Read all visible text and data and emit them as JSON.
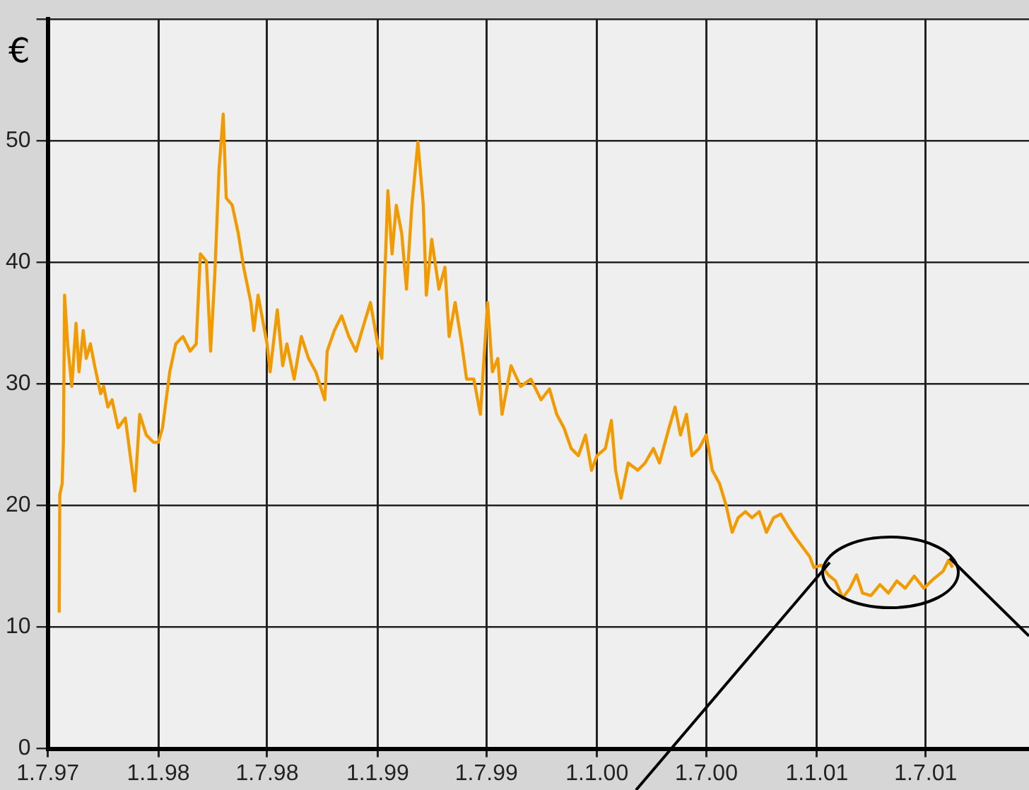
{
  "chart_data": {
    "type": "line",
    "ylabel": "€",
    "color": "#f29b00",
    "grid": true,
    "legend": false,
    "marker": "none",
    "line_style": "solid",
    "xlim": [
      "1997-07-01",
      "2001-12-20"
    ],
    "ylim": [
      0,
      60
    ],
    "xticks": [
      {
        "value": "1997-07-01",
        "label": "1.7.97"
      },
      {
        "value": "1998-01-01",
        "label": "1.1.98"
      },
      {
        "value": "1998-07-01",
        "label": "1.7.98"
      },
      {
        "value": "1999-01-01",
        "label": "1.1.99"
      },
      {
        "value": "1999-07-01",
        "label": "1.7.99"
      },
      {
        "value": "2000-01-01",
        "label": "1.1.00"
      },
      {
        "value": "2000-07-01",
        "label": "1.7.00"
      },
      {
        "value": "2001-01-01",
        "label": "1.1.01"
      },
      {
        "value": "2001-07-01",
        "label": "1.7.01"
      }
    ],
    "yticks": [
      0,
      10,
      20,
      30,
      40,
      50,
      {
        "value": 60,
        "label": null
      }
    ],
    "x": [
      "1997-07-20",
      "1997-07-21",
      "1997-07-25",
      "1997-07-27",
      "1997-07-29",
      "1997-08-03",
      "1997-08-10",
      "1997-08-17",
      "1997-08-22",
      "1997-08-29",
      "1997-09-03",
      "1997-09-10",
      "1997-09-17",
      "1997-09-27",
      "1997-10-02",
      "1997-10-09",
      "1997-10-16",
      "1997-10-26",
      "1997-11-07",
      "1997-11-23",
      "1997-12-01",
      "1997-12-12",
      "1997-12-24",
      "1998-01-01",
      "1998-01-08",
      "1998-01-20",
      "1998-01-30",
      "1998-02-11",
      "1998-02-23",
      "1998-03-05",
      "1998-03-12",
      "1998-03-22",
      "1998-03-29",
      "1998-04-05",
      "1998-04-12",
      "1998-04-19",
      "1998-04-24",
      "1998-05-04",
      "1998-05-14",
      "1998-05-23",
      "1998-06-04",
      "1998-06-09",
      "1998-06-16",
      "1998-07-01",
      "1998-07-06",
      "1998-07-18",
      "1998-07-27",
      "1998-08-03",
      "1998-08-15",
      "1998-08-27",
      "1998-09-08",
      "1998-09-20",
      "1998-10-05",
      "1998-10-09",
      "1998-10-21",
      "1998-11-02",
      "1998-11-14",
      "1998-11-26",
      "1998-12-06",
      "1998-12-20",
      "1999-01-01",
      "1999-01-08",
      "1999-01-18",
      "1999-01-25",
      "1999-02-01",
      "1999-02-10",
      "1999-02-18",
      "1999-02-27",
      "1999-03-09",
      "1999-03-18",
      "1999-03-23",
      "1999-04-01",
      "1999-04-13",
      "1999-04-23",
      "1999-04-30",
      "1999-05-10",
      "1999-05-21",
      "1999-05-29",
      "1999-06-10",
      "1999-06-21",
      "1999-07-03",
      "1999-07-11",
      "1999-07-20",
      "1999-07-27",
      "1999-08-11",
      "1999-08-27",
      "1999-09-13",
      "1999-09-30",
      "1999-10-14",
      "1999-10-26",
      "1999-11-07",
      "1999-11-19",
      "1999-12-01",
      "1999-12-13",
      "1999-12-23",
      "2000-01-01",
      "2000-01-15",
      "2000-01-25",
      "2000-02-01",
      "2000-02-10",
      "2000-02-22",
      "2000-03-09",
      "2000-03-21",
      "2000-04-04",
      "2000-04-14",
      "2000-04-30",
      "2000-05-10",
      "2000-05-19",
      "2000-05-29",
      "2000-06-07",
      "2000-06-19",
      "2000-07-01",
      "2000-07-11",
      "2000-07-23",
      "2000-08-03",
      "2000-08-13",
      "2000-08-23",
      "2000-09-04",
      "2000-09-15",
      "2000-09-27",
      "2000-10-09",
      "2000-10-21",
      "2000-11-02",
      "2000-11-14",
      "2000-11-26",
      "2000-12-08",
      "2000-12-20",
      "2000-12-27",
      "2001-01-08",
      "2001-01-20",
      "2001-02-01",
      "2001-02-13",
      "2001-02-25",
      "2001-03-08",
      "2001-03-18",
      "2001-04-01",
      "2001-04-16",
      "2001-04-30",
      "2001-05-14",
      "2001-05-28",
      "2001-06-12",
      "2001-06-28",
      "2001-07-15",
      "2001-07-30",
      "2001-08-08",
      "2001-08-15"
    ],
    "values": [
      11.2,
      20.9,
      21.8,
      25.2,
      37.3,
      33.3,
      29.8,
      35,
      31,
      34.4,
      32.1,
      33.3,
      31.5,
      29.2,
      29.8,
      28.1,
      28.7,
      26.4,
      27.2,
      21.2,
      27.5,
      25.8,
      25.2,
      25.2,
      26.4,
      31,
      33.3,
      33.9,
      32.7,
      33.3,
      40.7,
      40.1,
      32.7,
      39,
      47.6,
      52.2,
      45.3,
      44.7,
      42.4,
      39.6,
      36.7,
      34.4,
      37.3,
      33.3,
      31,
      36.1,
      31.5,
      33.3,
      30.4,
      33.9,
      32.1,
      31,
      28.7,
      32.7,
      34.4,
      35.6,
      33.9,
      32.7,
      34.4,
      36.7,
      33.3,
      32.1,
      45.9,
      40.7,
      44.7,
      42.4,
      37.8,
      44.7,
      49.9,
      44.7,
      37.3,
      41.9,
      37.8,
      39.6,
      33.9,
      36.7,
      33.3,
      30.4,
      30.4,
      27.5,
      36.7,
      31,
      32.1,
      27.5,
      31.5,
      29.8,
      30.4,
      28.7,
      29.6,
      27.5,
      26.4,
      24.7,
      24.1,
      25.8,
      22.9,
      24.1,
      24.7,
      27,
      22.9,
      20.6,
      23.5,
      22.9,
      23.5,
      24.7,
      23.5,
      26.4,
      28.1,
      25.8,
      27.5,
      24.1,
      24.7,
      25.8,
      22.9,
      21.8,
      20,
      17.8,
      19,
      19.5,
      19,
      19.5,
      17.8,
      19,
      19.3,
      18.3,
      17.4,
      16.6,
      15.8,
      14.9,
      15.1,
      14.3,
      13.8,
      12.4,
      13.2,
      14.3,
      12.8,
      12.6,
      13.5,
      12.8,
      13.8,
      13.2,
      14.2,
      13.2,
      14,
      14.6,
      15.5,
      14.9
    ]
  }
}
